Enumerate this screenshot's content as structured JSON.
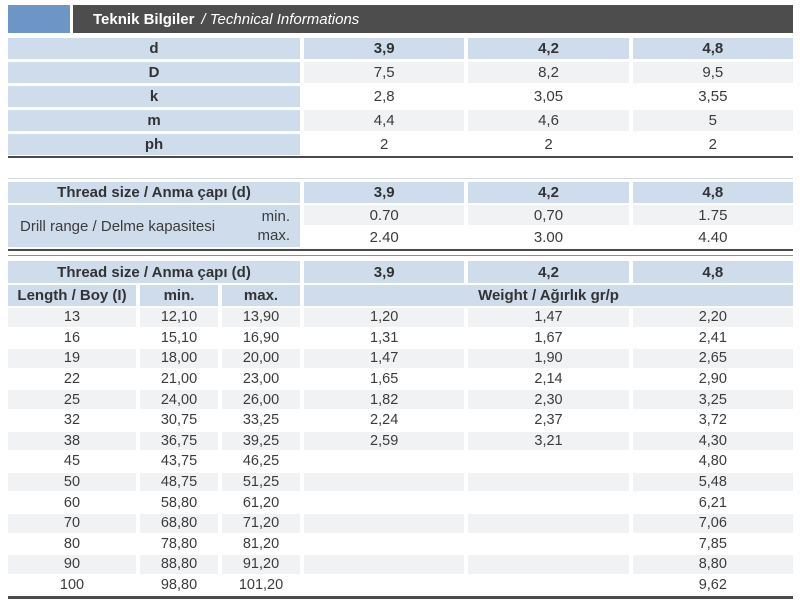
{
  "header": {
    "title_bold": "Teknik Bilgiler",
    "title_italic": "/ Technical Informations"
  },
  "colors": {
    "accent_blue": "#6d96c7",
    "bar_dark": "#4d4d4d",
    "cell_blue": "#cfdcec",
    "row_stripe": "#f1f2f4",
    "border_dark": "#4a4a4a",
    "text": "#3b3b3b"
  },
  "dimensions_table": {
    "header_label": "d",
    "header_values": [
      "3,9",
      "4,2",
      "4,8"
    ],
    "rows": [
      {
        "label": "D",
        "values": [
          "7,5",
          "8,2",
          "9,5"
        ]
      },
      {
        "label": "k",
        "values": [
          "2,8",
          "3,05",
          "3,55"
        ]
      },
      {
        "label": "m",
        "values": [
          "4,4",
          "4,6",
          "5"
        ]
      },
      {
        "label": "ph",
        "values": [
          "2",
          "2",
          "2"
        ]
      }
    ]
  },
  "drill_table": {
    "header_label": "Thread size / Anma çapı (d)",
    "header_values": [
      "3,9",
      "4,2",
      "4,8"
    ],
    "range_label": "Drill range / Delme kapasitesi",
    "min_label": "min.",
    "max_label": "max.",
    "min_values": [
      "0.70",
      "0,70",
      "1.75"
    ],
    "max_values": [
      "2.40",
      "3.00",
      "4.40"
    ]
  },
  "weight_table": {
    "header_label": "Thread size / Anma çapı (d)",
    "header_values": [
      "3,9",
      "4,2",
      "4,8"
    ],
    "col_headers": {
      "length": "Length / Boy (I)",
      "min": "min.",
      "max": "max.",
      "weight": "Weight / Ağırlık gr/p"
    },
    "rows": [
      {
        "length": "13",
        "min": "12,10",
        "max": "13,90",
        "w1": "1,20",
        "w2": "1,47",
        "w3": "2,20"
      },
      {
        "length": "16",
        "min": "15,10",
        "max": "16,90",
        "w1": "1,31",
        "w2": "1,67",
        "w3": "2,41"
      },
      {
        "length": "19",
        "min": "18,00",
        "max": "20,00",
        "w1": "1,47",
        "w2": "1,90",
        "w3": "2,65"
      },
      {
        "length": "22",
        "min": "21,00",
        "max": "23,00",
        "w1": "1,65",
        "w2": "2,14",
        "w3": "2,90"
      },
      {
        "length": "25",
        "min": "24,00",
        "max": "26,00",
        "w1": "1,82",
        "w2": "2,30",
        "w3": "3,25"
      },
      {
        "length": "32",
        "min": "30,75",
        "max": "33,25",
        "w1": "2,24",
        "w2": "2,37",
        "w3": "3,72"
      },
      {
        "length": "38",
        "min": "36,75",
        "max": "39,25",
        "w1": "2,59",
        "w2": "3,21",
        "w3": "4,30"
      },
      {
        "length": "45",
        "min": "43,75",
        "max": "46,25",
        "w1": "",
        "w2": "",
        "w3": "4,80"
      },
      {
        "length": "50",
        "min": "48,75",
        "max": "51,25",
        "w1": "",
        "w2": "",
        "w3": "5,48"
      },
      {
        "length": "60",
        "min": "58,80",
        "max": "61,20",
        "w1": "",
        "w2": "",
        "w3": "6,21"
      },
      {
        "length": "70",
        "min": "68,80",
        "max": "71,20",
        "w1": "",
        "w2": "",
        "w3": "7,06"
      },
      {
        "length": "80",
        "min": "78,80",
        "max": "81,20",
        "w1": "",
        "w2": "",
        "w3": "7,85"
      },
      {
        "length": "90",
        "min": "88,80",
        "max": "91,20",
        "w1": "",
        "w2": "",
        "w3": "8,80"
      },
      {
        "length": "100",
        "min": "98,80",
        "max": "101,20",
        "w1": "",
        "w2": "",
        "w3": "9,62"
      }
    ]
  }
}
